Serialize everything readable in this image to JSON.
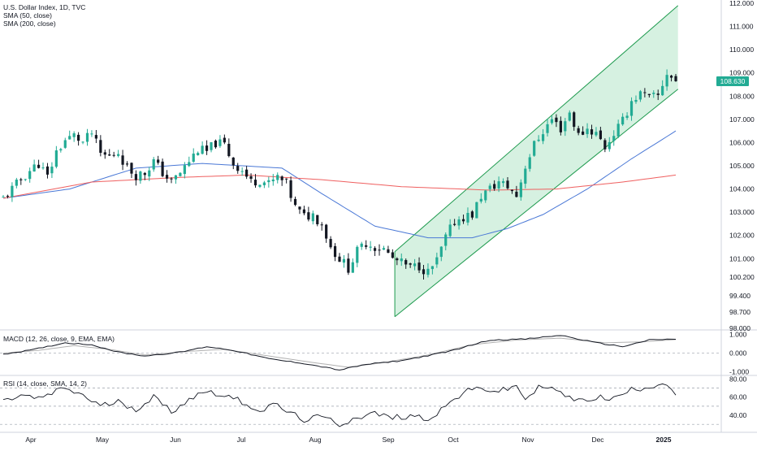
{
  "header": {
    "symbol_line": "U.S. Dollar Index, 1D, TVC",
    "indicators": [
      "SMA (50, close)",
      "SMA (200, close)"
    ]
  },
  "price_badge": "108.630",
  "macd_label": "MACD (12, 26, close, 9, EMA, EMA)",
  "rsi_label": "RSI (14, close, SMA, 14, 2)",
  "colors": {
    "up": "#22ab94",
    "down": "#131722",
    "sma50": "#4a78d6",
    "sma200": "#ef5f5f",
    "channel_fill": "#d4f0df",
    "channel_line": "#1e9a4e",
    "macd": "#131722",
    "signal": "#b0b0b0",
    "badge": "#22ab94"
  },
  "chart_data": [
    {
      "type": "candlestick",
      "title": "U.S. Dollar Index, 1D, TVC",
      "x_tick_labels": [
        "Apr",
        "May",
        "Jun",
        "Jul",
        "Aug",
        "Sep",
        "Oct",
        "Nov",
        "Dec",
        "2025"
      ],
      "y_tick_labels": [
        "112.000",
        "111.000",
        "110.000",
        "109.000",
        "108.000",
        "107.000",
        "106.000",
        "105.000",
        "104.000",
        "103.000",
        "102.000",
        "101.000",
        "100.200",
        "99.400",
        "98.700",
        "98.000"
      ],
      "ylim": [
        98.0,
        112.0
      ],
      "close_points": [
        [
          0,
          103.6
        ],
        [
          3,
          104.2
        ],
        [
          6,
          104.8
        ],
        [
          8,
          105.1
        ],
        [
          10,
          104.5
        ],
        [
          12,
          105.6
        ],
        [
          14,
          106.1
        ],
        [
          16,
          106.3
        ],
        [
          18,
          106.0
        ],
        [
          20,
          106.4
        ],
        [
          22,
          105.5
        ],
        [
          24,
          105.4
        ],
        [
          26,
          105.6
        ],
        [
          28,
          104.9
        ],
        [
          30,
          104.6
        ],
        [
          32,
          104.7
        ],
        [
          34,
          105.2
        ],
        [
          36,
          104.7
        ],
        [
          38,
          104.3
        ],
        [
          40,
          104.7
        ],
        [
          42,
          105.2
        ],
        [
          44,
          105.7
        ],
        [
          46,
          105.6
        ],
        [
          48,
          106.0
        ],
        [
          50,
          105.9
        ],
        [
          52,
          105.1
        ],
        [
          54,
          104.8
        ],
        [
          56,
          104.3
        ],
        [
          58,
          104.4
        ],
        [
          60,
          104.2
        ],
        [
          62,
          104.5
        ],
        [
          64,
          104.2
        ],
        [
          66,
          103.2
        ],
        [
          68,
          102.8
        ],
        [
          70,
          102.9
        ],
        [
          72,
          102.5
        ],
        [
          74,
          101.5
        ],
        [
          76,
          101.0
        ],
        [
          78,
          100.6
        ],
        [
          80,
          101.3
        ],
        [
          82,
          101.7
        ],
        [
          84,
          101.5
        ],
        [
          86,
          101.4
        ],
        [
          88,
          101.0
        ],
        [
          90,
          100.8
        ],
        [
          92,
          100.6
        ],
        [
          94,
          100.7
        ],
        [
          96,
          100.4
        ],
        [
          98,
          100.9
        ],
        [
          100,
          101.9
        ],
        [
          102,
          102.6
        ],
        [
          104,
          102.8
        ],
        [
          106,
          102.9
        ],
        [
          108,
          103.7
        ],
        [
          110,
          104.0
        ],
        [
          112,
          104.3
        ],
        [
          114,
          104.1
        ],
        [
          116,
          103.7
        ],
        [
          118,
          105.0
        ],
        [
          120,
          105.9
        ],
        [
          122,
          106.5
        ],
        [
          124,
          107.0
        ],
        [
          126,
          106.6
        ],
        [
          128,
          107.3
        ],
        [
          130,
          106.3
        ],
        [
          132,
          106.6
        ],
        [
          134,
          106.4
        ],
        [
          136,
          105.8
        ],
        [
          138,
          106.4
        ],
        [
          140,
          106.9
        ],
        [
          142,
          107.8
        ],
        [
          144,
          108.1
        ],
        [
          146,
          107.9
        ],
        [
          148,
          108.0
        ],
        [
          150,
          109.0
        ],
        [
          152,
          108.63
        ]
      ],
      "series": [
        {
          "name": "SMA (50, close)",
          "points": [
            [
              0,
              103.6
            ],
            [
              15,
              104.0
            ],
            [
              30,
              104.9
            ],
            [
              45,
              105.1
            ],
            [
              63,
              104.9
            ],
            [
              72,
              103.8
            ],
            [
              84,
              102.4
            ],
            [
              96,
              101.9
            ],
            [
              106,
              101.9
            ],
            [
              114,
              102.3
            ],
            [
              122,
              102.9
            ],
            [
              132,
              104.0
            ],
            [
              142,
              105.3
            ],
            [
              152,
              106.5
            ]
          ]
        },
        {
          "name": "SMA (200, close)",
          "points": [
            [
              0,
              103.6
            ],
            [
              20,
              104.3
            ],
            [
              40,
              104.5
            ],
            [
              55,
              104.6
            ],
            [
              72,
              104.4
            ],
            [
              90,
              104.1
            ],
            [
              110,
              103.95
            ],
            [
              125,
              104.0
            ],
            [
              140,
              104.3
            ],
            [
              152,
              104.6
            ]
          ]
        }
      ]
    },
    {
      "type": "line",
      "title": "MACD (12, 26, close, 9, EMA, EMA)",
      "y_tick_labels": [
        "1.000",
        "0.000",
        "-1.000"
      ],
      "ylim": [
        -1.1,
        1.15
      ],
      "series": [
        {
          "name": "MACD",
          "points": [
            [
              0,
              -0.05
            ],
            [
              6,
              0.15
            ],
            [
              14,
              0.55
            ],
            [
              20,
              0.45
            ],
            [
              26,
              0.05
            ],
            [
              32,
              -0.15
            ],
            [
              40,
              0.05
            ],
            [
              46,
              0.35
            ],
            [
              52,
              0.15
            ],
            [
              60,
              -0.3
            ],
            [
              68,
              -0.55
            ],
            [
              76,
              -0.9
            ],
            [
              82,
              -0.6
            ],
            [
              90,
              -0.4
            ],
            [
              100,
              0.05
            ],
            [
              110,
              0.7
            ],
            [
              118,
              0.75
            ],
            [
              126,
              0.95
            ],
            [
              134,
              0.55
            ],
            [
              140,
              0.35
            ],
            [
              146,
              0.7
            ],
            [
              152,
              0.75
            ]
          ]
        },
        {
          "name": "Signal",
          "points": [
            [
              0,
              0.0
            ],
            [
              8,
              0.15
            ],
            [
              16,
              0.4
            ],
            [
              24,
              0.2
            ],
            [
              32,
              -0.1
            ],
            [
              42,
              0.1
            ],
            [
              50,
              0.2
            ],
            [
              60,
              -0.15
            ],
            [
              70,
              -0.5
            ],
            [
              78,
              -0.75
            ],
            [
              86,
              -0.5
            ],
            [
              96,
              -0.1
            ],
            [
              106,
              0.45
            ],
            [
              116,
              0.7
            ],
            [
              126,
              0.8
            ],
            [
              136,
              0.55
            ],
            [
              144,
              0.6
            ],
            [
              152,
              0.72
            ]
          ]
        }
      ]
    },
    {
      "type": "line",
      "title": "RSI (14, close, SMA, 14, 2)",
      "y_tick_labels": [
        "80.00",
        "60.00",
        "40.00"
      ],
      "ylim": [
        23,
        83
      ],
      "series": [
        {
          "name": "RSI",
          "points": [
            [
              0,
              55
            ],
            [
              4,
              62
            ],
            [
              8,
              58
            ],
            [
              12,
              66
            ],
            [
              14,
              70
            ],
            [
              18,
              62
            ],
            [
              22,
              50
            ],
            [
              26,
              55
            ],
            [
              30,
              47
            ],
            [
              34,
              60
            ],
            [
              38,
              44
            ],
            [
              42,
              58
            ],
            [
              46,
              67
            ],
            [
              50,
              62
            ],
            [
              54,
              55
            ],
            [
              58,
              45
            ],
            [
              62,
              52
            ],
            [
              64,
              44
            ],
            [
              68,
              35
            ],
            [
              72,
              38
            ],
            [
              76,
              30
            ],
            [
              80,
              38
            ],
            [
              84,
              42
            ],
            [
              88,
              37
            ],
            [
              92,
              40
            ],
            [
              96,
              36
            ],
            [
              100,
              50
            ],
            [
              104,
              65
            ],
            [
              108,
              70
            ],
            [
              112,
              66
            ],
            [
              116,
              72
            ],
            [
              118,
              58
            ],
            [
              122,
              74
            ],
            [
              126,
              64
            ],
            [
              130,
              55
            ],
            [
              134,
              60
            ],
            [
              138,
              58
            ],
            [
              142,
              68
            ],
            [
              146,
              72
            ],
            [
              150,
              76
            ],
            [
              152,
              62
            ]
          ]
        }
      ]
    }
  ]
}
